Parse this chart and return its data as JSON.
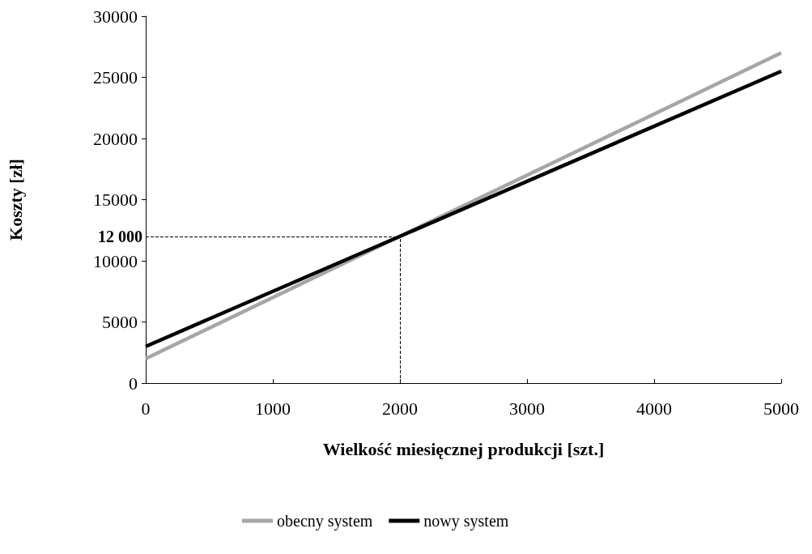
{
  "chart_data": {
    "type": "line",
    "xlabel": "Wielkość miesięcznej produkcji [szt.]",
    "ylabel": "Koszty [zł]",
    "x": [
      0,
      5000
    ],
    "series": [
      {
        "name": "obecny system",
        "color": "#a6a6a6",
        "values": [
          2000,
          27000
        ]
      },
      {
        "name": "nowy system",
        "color": "#000000",
        "values": [
          3000,
          25500
        ]
      }
    ],
    "xlim": [
      0,
      5000
    ],
    "xticks": [
      0,
      1000,
      2000,
      3000,
      4000,
      5000
    ],
    "ylim": [
      0,
      30000
    ],
    "yticks": [
      0,
      5000,
      10000,
      15000,
      20000,
      25000,
      30000
    ],
    "ref_lines": [
      {
        "axis": "y",
        "value": 12000,
        "label": "12 000",
        "line_style": "dashed"
      },
      {
        "axis": "x",
        "value": 2000,
        "line_style": "dashed"
      }
    ],
    "grid": false,
    "legend": "bottom",
    "marker": "none",
    "line_style": "solid"
  }
}
